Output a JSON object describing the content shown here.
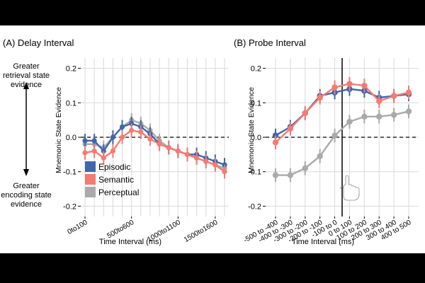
{
  "annotations": {
    "greater_retrieval": [
      "Greater",
      "retrieval state",
      "evidence"
    ],
    "greater_encoding": [
      "Greater",
      "encoding state",
      "evidence"
    ]
  },
  "colors": {
    "Episodic": "#3F66AE",
    "Semantic": "#F47B72",
    "Perceptual": "#AAAAAA",
    "grid": "#D9D9D9",
    "axis": "#000000"
  },
  "chart_data": [
    {
      "type": "line",
      "title": "(A) Delay Interval",
      "xlabel": "Time Interval (ms)",
      "ylabel": "Mnemonic State Evidence",
      "ylim": [
        -0.23,
        0.23
      ],
      "yticks": [
        -0.2,
        -0.1,
        0.0,
        0.1,
        0.2
      ],
      "ytick_labels": [
        "-0.2",
        "-0.1",
        "0.0",
        "0.1",
        "0.2"
      ],
      "x_count": 16,
      "xtick_indices": [
        0,
        5,
        10,
        14
      ],
      "xtick_labels": [
        "0to100",
        "500to600",
        "1000to1100",
        "1500to1600"
      ],
      "legend": {
        "position": "bottom-left",
        "entries": [
          "Episodic",
          "Semantic",
          "Perceptual"
        ]
      },
      "series": [
        {
          "name": "Episodic",
          "values": [
            -0.01,
            -0.01,
            -0.04,
            0.0,
            0.03,
            0.04,
            0.03,
            0.01,
            -0.02,
            -0.03,
            -0.04,
            -0.05,
            -0.05,
            -0.06,
            -0.07,
            -0.08
          ],
          "err": 0.02
        },
        {
          "name": "Semantic",
          "values": [
            -0.045,
            -0.04,
            -0.06,
            -0.04,
            0.0,
            0.02,
            0.015,
            -0.005,
            -0.02,
            -0.03,
            -0.04,
            -0.05,
            -0.06,
            -0.07,
            -0.08,
            -0.1
          ],
          "err": 0.02
        },
        {
          "name": "Perceptual",
          "values": [
            -0.02,
            -0.02,
            -0.03,
            0.0,
            0.03,
            0.05,
            0.04,
            0.02,
            -0.01,
            -0.03,
            -0.04,
            -0.05,
            -0.06,
            -0.07,
            -0.08,
            -0.09
          ],
          "err": 0.02
        }
      ]
    },
    {
      "type": "line",
      "title": "(B) Probe Interval",
      "xlabel": "Time Interval (ms)",
      "ylabel": "Mnemonic State Evidence",
      "ylim": [
        -0.23,
        0.23
      ],
      "yticks": [
        -0.2,
        -0.1,
        0.0,
        0.1,
        0.2
      ],
      "ytick_labels": [
        "-0.2",
        "-0.1",
        "0.0",
        "0.1",
        "0.2"
      ],
      "categories": [
        "-500 to -400",
        "-400 to -300",
        "-300 to -200",
        "-200 to -100",
        "-100 to 0",
        "0 to 100",
        "100 to 200",
        "200 to 300",
        "300 to 400",
        "400 to 500"
      ],
      "probe_onset_after_index": 4,
      "series": [
        {
          "name": "Episodic",
          "values": [
            0.005,
            0.03,
            0.07,
            0.12,
            0.13,
            0.14,
            0.135,
            0.115,
            0.12,
            0.125
          ],
          "err": 0.02
        },
        {
          "name": "Semantic",
          "values": [
            -0.015,
            0.025,
            0.07,
            0.115,
            0.145,
            0.155,
            0.15,
            0.105,
            0.12,
            0.13
          ],
          "err": 0.02
        },
        {
          "name": "Perceptual",
          "values": [
            -0.11,
            -0.11,
            -0.09,
            -0.055,
            0.005,
            0.045,
            0.06,
            0.06,
            0.065,
            0.075
          ],
          "err": 0.02
        }
      ]
    }
  ]
}
